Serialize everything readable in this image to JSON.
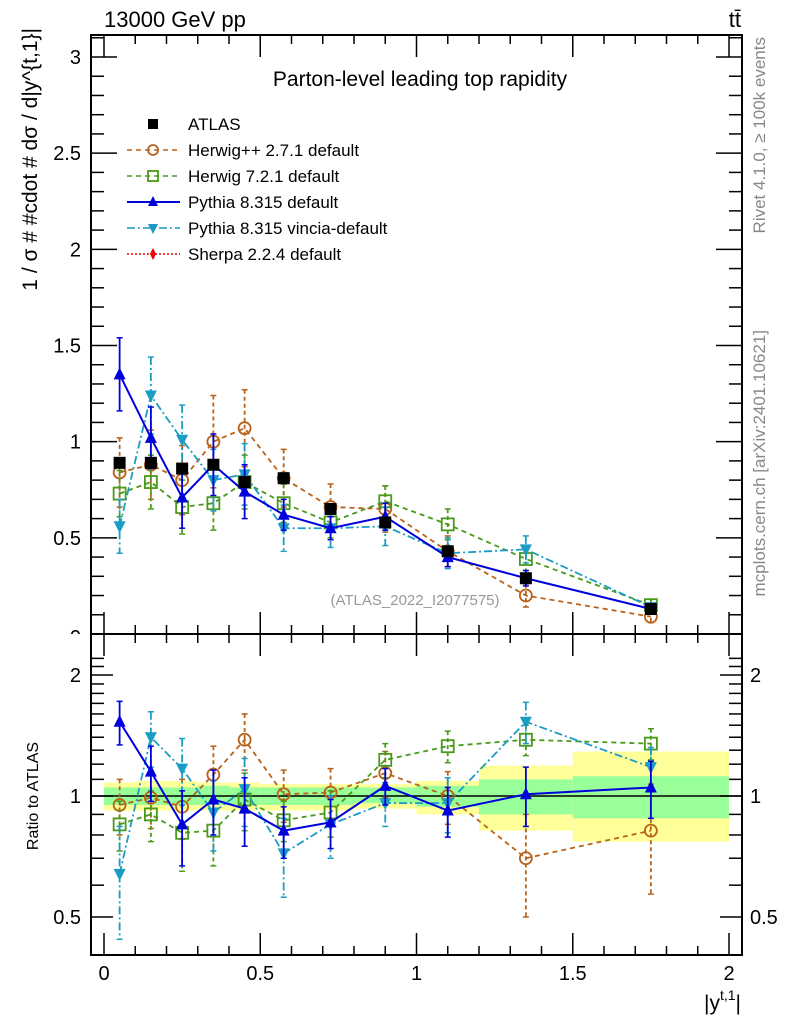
{
  "header": {
    "beam_label": "13000 GeV pp",
    "process_label": "tt̄"
  },
  "side_labels": {
    "rivet": "Rivet 4.1.0, ≥ 100k events",
    "mcplots": "mcplots.cern.ch [arXiv:2401.10621]"
  },
  "watermark": "(ATLAS_2022_I2077575)",
  "chart_data": [
    {
      "type": "scatter",
      "panel": "main",
      "title": "Parton-level leading top rapidity",
      "xlabel": "|y^{t,1}|",
      "ylabel": "1 / σ # #cdot # dσ / d|y^{t,1}|",
      "xlim": [
        -0.04,
        2.04
      ],
      "ylim": [
        0,
        3.12
      ],
      "xticks": [
        0,
        0.5,
        1,
        1.5,
        2
      ],
      "xtick_labels": [
        "0",
        "0.5",
        "1",
        "1.5",
        "2"
      ],
      "yticks": [
        0.5,
        1,
        1.5,
        2,
        2.5,
        3
      ],
      "ytick_labels": [
        "0.5",
        "1",
        "1.5",
        "2",
        "2.5",
        "3"
      ],
      "legend_position": "top-left",
      "grid": false,
      "x": [
        0.05,
        0.15,
        0.25,
        0.35,
        0.45,
        0.575,
        0.725,
        0.9,
        1.1,
        1.35,
        1.75
      ],
      "series": [
        {
          "name": "ATLAS",
          "color": "#000000",
          "marker": "square-filled",
          "line": "none",
          "values": [
            0.89,
            0.89,
            0.86,
            0.88,
            0.79,
            0.81,
            0.65,
            0.58,
            0.43,
            0.29,
            0.13
          ],
          "errors": [
            0.02,
            0.02,
            0.02,
            0.02,
            0.02,
            0.02,
            0.02,
            0.02,
            0.02,
            0.02,
            0.01
          ]
        },
        {
          "name": "Herwig++ 2.7.1 default",
          "color": "#b8621a",
          "marker": "circle-open",
          "line": "dashed",
          "values": [
            0.84,
            0.88,
            0.8,
            1.0,
            1.07,
            0.81,
            0.66,
            0.65,
            0.43,
            0.2,
            0.09
          ],
          "errors": [
            0.18,
            0.18,
            0.18,
            0.24,
            0.2,
            0.15,
            0.12,
            0.12,
            0.08,
            0.06,
            0.03
          ]
        },
        {
          "name": "Herwig 7.2.1 default",
          "color": "#4a9a1a",
          "marker": "square-open",
          "line": "dashed",
          "values": [
            0.73,
            0.79,
            0.66,
            0.68,
            0.79,
            0.68,
            0.58,
            0.69,
            0.57,
            0.39,
            0.15
          ],
          "errors": [
            0.12,
            0.14,
            0.14,
            0.14,
            0.14,
            0.1,
            0.08,
            0.08,
            0.08,
            0.06,
            0.03
          ]
        },
        {
          "name": "Pythia 8.315 default",
          "color": "#0000dd",
          "marker": "triangle-up-filled",
          "line": "solid",
          "values": [
            1.35,
            1.02,
            0.71,
            0.88,
            0.74,
            0.62,
            0.55,
            0.61,
            0.4,
            0.29,
            0.13
          ],
          "errors": [
            0.19,
            0.16,
            0.16,
            0.16,
            0.14,
            0.08,
            0.06,
            0.07,
            0.05,
            0.04,
            0.02
          ]
        },
        {
          "name": "Pythia 8.315 vincia-default",
          "color": "#1a9cc4",
          "marker": "triangle-down-filled",
          "line": "dashdot",
          "values": [
            0.56,
            1.24,
            1.01,
            0.8,
            0.83,
            0.55,
            0.55,
            0.56,
            0.42,
            0.44,
            0.14
          ],
          "errors": [
            0.14,
            0.2,
            0.18,
            0.16,
            0.16,
            0.12,
            0.1,
            0.1,
            0.08,
            0.07,
            0.02
          ]
        },
        {
          "name": "Sherpa 2.2.4 default",
          "color": "#ee0000",
          "marker": "diamond-filled",
          "line": "dotted",
          "values": [],
          "errors": []
        }
      ]
    },
    {
      "type": "scatter",
      "panel": "ratio",
      "ylabel": "Ratio to ATLAS",
      "yscale": "log",
      "xlim": [
        -0.04,
        2.04
      ],
      "ylim": [
        0.42,
        2.3
      ],
      "yticks": [
        0.5,
        1,
        2
      ],
      "ytick_labels": [
        "0.5",
        "1",
        "2"
      ],
      "reference_line": 1,
      "bin_edges": [
        0,
        0.1,
        0.2,
        0.3,
        0.4,
        0.5,
        0.65,
        0.8,
        1.0,
        1.2,
        1.5,
        2.0
      ],
      "band_inner": {
        "color": "#99ff99",
        "low": [
          0.95,
          0.95,
          0.95,
          0.95,
          0.95,
          0.95,
          0.95,
          0.96,
          0.94,
          0.9,
          0.88
        ],
        "high": [
          1.05,
          1.05,
          1.05,
          1.06,
          1.05,
          1.05,
          1.05,
          1.05,
          1.06,
          1.1,
          1.12
        ]
      },
      "band_outer": {
        "color": "#ffff99",
        "low": [
          0.92,
          0.92,
          0.92,
          0.92,
          0.92,
          0.92,
          0.92,
          0.93,
          0.9,
          0.82,
          0.77
        ],
        "high": [
          1.08,
          1.09,
          1.09,
          1.08,
          1.08,
          1.07,
          1.07,
          1.07,
          1.09,
          1.19,
          1.29
        ]
      },
      "series": [
        {
          "name": "Herwig++ 2.7.1 default",
          "values": [
            0.95,
            0.99,
            0.94,
            1.13,
            1.38,
            1.01,
            1.02,
            1.14,
            1.0,
            0.7,
            0.82
          ],
          "err_low": [
            0.15,
            0.16,
            0.16,
            0.2,
            0.22,
            0.15,
            0.15,
            0.15,
            0.15,
            0.2,
            0.25
          ],
          "err_high": [
            0.15,
            0.16,
            0.16,
            0.2,
            0.22,
            0.15,
            0.15,
            0.15,
            0.15,
            0.2,
            0.25
          ]
        },
        {
          "name": "Herwig 7.2.1 default",
          "values": [
            0.85,
            0.9,
            0.81,
            0.82,
            0.98,
            0.87,
            0.91,
            1.23,
            1.33,
            1.38,
            1.35
          ],
          "err_low": [
            0.12,
            0.13,
            0.16,
            0.15,
            0.16,
            0.1,
            0.12,
            0.12,
            0.12,
            0.12,
            0.12
          ],
          "err_high": [
            0.12,
            0.13,
            0.16,
            0.15,
            0.16,
            0.1,
            0.12,
            0.12,
            0.12,
            0.12,
            0.12
          ]
        },
        {
          "name": "Pythia 8.315 default",
          "values": [
            1.53,
            1.15,
            0.85,
            0.98,
            0.93,
            0.82,
            0.86,
            1.06,
            0.92,
            1.01,
            1.05
          ],
          "err_low": [
            0.19,
            0.18,
            0.18,
            0.18,
            0.18,
            0.12,
            0.12,
            0.11,
            0.13,
            0.17,
            0.17
          ],
          "err_high": [
            0.19,
            0.18,
            0.18,
            0.18,
            0.18,
            0.12,
            0.12,
            0.11,
            0.13,
            0.17,
            0.17
          ]
        },
        {
          "name": "Pythia 8.315 vincia-default",
          "values": [
            0.64,
            1.4,
            1.17,
            0.91,
            1.04,
            0.72,
            0.85,
            0.96,
            0.96,
            1.53,
            1.18
          ],
          "err_low": [
            0.2,
            0.22,
            0.22,
            0.18,
            0.2,
            0.16,
            0.15,
            0.12,
            0.15,
            0.18,
            0.14
          ],
          "err_high": [
            0.2,
            0.22,
            0.22,
            0.18,
            0.2,
            0.16,
            0.15,
            0.12,
            0.15,
            0.18,
            0.14
          ]
        }
      ]
    }
  ]
}
